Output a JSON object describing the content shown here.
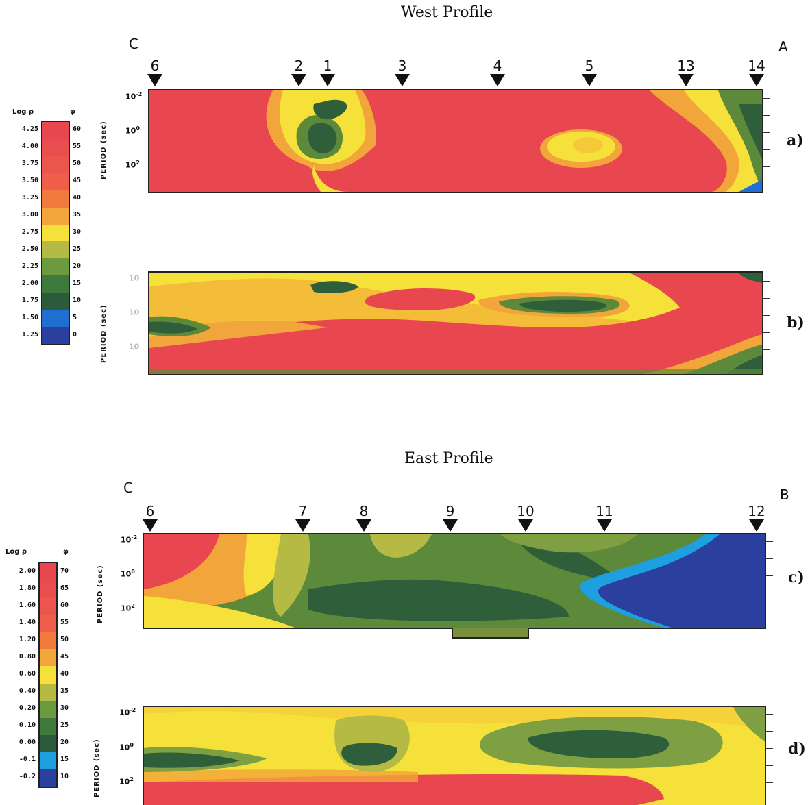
{
  "west": {
    "title": "West Profile",
    "left_end": "C",
    "right_end": "A",
    "stations": [
      "6",
      "2",
      "1",
      "3",
      "4",
      "5",
      "13",
      "14"
    ],
    "scale": {
      "header_left": "Log ρ",
      "header_right": "φ",
      "log_rho": [
        "4.25",
        "4.00",
        "3.75",
        "3.50",
        "3.25",
        "3.00",
        "2.75",
        "2.50",
        "2.25",
        "2.00",
        "1.75",
        "1.50",
        "1.25"
      ],
      "phi": [
        "60",
        "55",
        "50",
        "45",
        "40",
        "35",
        "30",
        "25",
        "20",
        "15",
        "10",
        "5",
        "0"
      ]
    },
    "panels": [
      {
        "label": "a)",
        "ylabel": "PERIOD (sec)",
        "ticks": [
          "10",
          "10",
          "10"
        ],
        "tick_exp": [
          "-2",
          "0",
          "2"
        ]
      },
      {
        "label": "b)",
        "ylabel": "PERIOD (sec)",
        "ticks": [
          "10",
          "10",
          "10"
        ],
        "tick_exp": [
          "",
          "",
          ""
        ]
      }
    ]
  },
  "east": {
    "title": "East Profile",
    "left_end": "C",
    "right_end": "B",
    "stations": [
      "6",
      "7",
      "8",
      "9",
      "10",
      "11",
      "12"
    ],
    "scale": {
      "header_left": "Log ρ",
      "header_right": "φ",
      "log_rho": [
        "2.00",
        "1.80",
        "1.60",
        "1.40",
        "1.20",
        "0.80",
        "0.60",
        "0.40",
        "0.20",
        "0.10",
        "0.00",
        "-0.1",
        "-0.2"
      ],
      "phi": [
        "70",
        "65",
        "60",
        "55",
        "50",
        "45",
        "40",
        "35",
        "30",
        "25",
        "20",
        "15",
        "10"
      ]
    },
    "panels": [
      {
        "label": "c)",
        "ylabel": "PERIOD (sec)",
        "ticks": [
          "10",
          "10",
          "10"
        ],
        "tick_exp": [
          "-2",
          "0",
          "2"
        ]
      },
      {
        "label": "d)",
        "ylabel": "PERIOD (sec)",
        "ticks": [
          "10",
          "10",
          "10"
        ],
        "tick_exp": [
          "-2",
          "0",
          "2"
        ]
      }
    ]
  },
  "colors": {
    "red": "#e8474f",
    "orange": "#f29a3a",
    "yellow": "#f6e03a",
    "olive": "#a7b642",
    "green": "#5c8a3a",
    "darkgreen": "#2f5e3a",
    "cyan": "#1ea0e0",
    "blue": "#2a3f9e"
  },
  "scale_colors_west": [
    "#e8474f",
    "#ea4d4f",
    "#ec544e",
    "#ee5e4a",
    "#f07a3e",
    "#f2a53a",
    "#f6e03a",
    "#b4ba44",
    "#6d9a3f",
    "#3f7a3d",
    "#2c5a3c",
    "#1f6fd0",
    "#2a3f9e"
  ],
  "scale_colors_east": [
    "#e8474f",
    "#ea4d4f",
    "#ec544e",
    "#ee5e4a",
    "#f07a3e",
    "#f2a53a",
    "#f6e03a",
    "#b4ba44",
    "#6d9a3f",
    "#3f7a3d",
    "#2c5a3c",
    "#1ea0e0",
    "#2a3f9e"
  ]
}
